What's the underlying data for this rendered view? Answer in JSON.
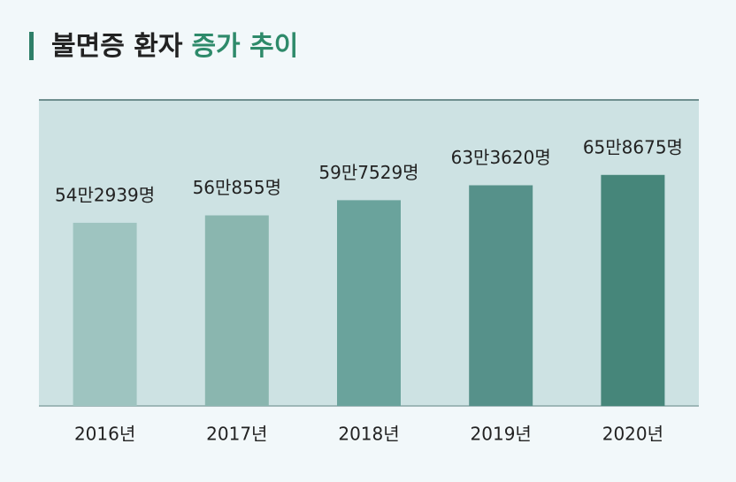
{
  "chart_data": {
    "type": "bar",
    "title": [
      "불면증 환자",
      "증가 추이"
    ],
    "categories": [
      "2016년",
      "2017년",
      "2018년",
      "2019년",
      "2020년"
    ],
    "values": [
      542939,
      560855,
      597529,
      633620,
      658675
    ],
    "value_labels": [
      "54만2939명",
      "56만855명",
      "59만7529명",
      "63만3620명",
      "65만8675명"
    ],
    "colors": [
      "#9ec4c0",
      "#8ab6af",
      "#6aa39c",
      "#56918a",
      "#46867a"
    ],
    "ylim": [
      100000,
      840000
    ]
  }
}
